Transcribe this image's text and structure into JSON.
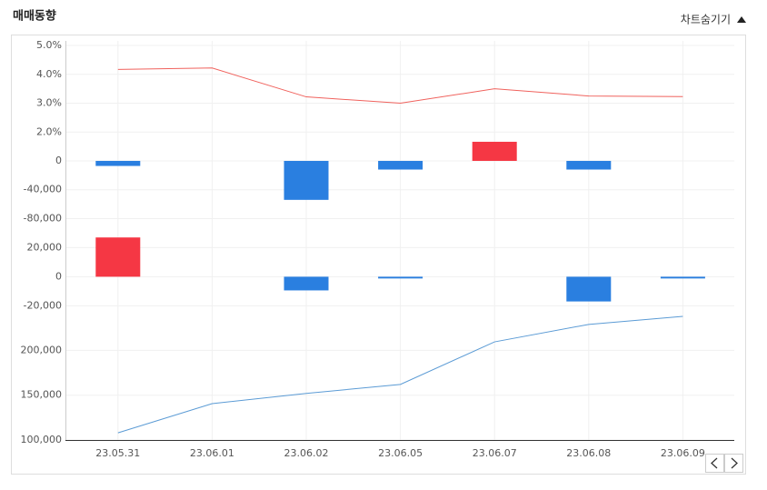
{
  "header": {
    "title": "매매동향",
    "toggle": "차트숨기기"
  },
  "chart_data": [
    {
      "type": "line",
      "color": "#f0625d",
      "values": [
        4.17,
        4.22,
        3.22,
        3.0,
        3.5,
        3.25,
        3.23
      ],
      "ylim": [
        1.6,
        5.0
      ],
      "yticks": [
        {
          "value": 5,
          "label": "5.0%"
        },
        {
          "value": 4,
          "label": "4.0%"
        },
        {
          "value": 3,
          "label": "3.0%"
        },
        {
          "value": 2,
          "label": "2.0%"
        }
      ],
      "grid": true
    },
    {
      "type": "bar",
      "colors": {
        "positive": "#f53744",
        "negative": "#2a7fe0"
      },
      "values": [
        -7000,
        0,
        -54000,
        -12000,
        26500,
        -12000,
        0
      ],
      "ylim": [
        -92000,
        34000
      ],
      "yticks": [
        0,
        {
          "value": -40000,
          "label": "-40,000"
        },
        {
          "value": -80000,
          "label": "-80,000"
        }
      ],
      "grid": true
    },
    {
      "type": "bar",
      "colors": {
        "positive": "#f53744",
        "negative": "#2a7fe0"
      },
      "values": [
        27000,
        0,
        -9400,
        -1200,
        0,
        -17000,
        -1200
      ],
      "ylim": [
        -26000,
        34000
      ],
      "yticks": [
        {
          "value": 20000,
          "label": "20,000"
        },
        0,
        {
          "value": -20000,
          "label": "-20,000"
        }
      ],
      "grid": true
    },
    {
      "type": "line",
      "color": "#5b9bd5",
      "values": [
        108000,
        140600,
        152000,
        162000,
        209500,
        229000,
        238000
      ],
      "ylim": [
        100000,
        240000
      ],
      "yticks": [
        {
          "value": 200000,
          "label": "200,000"
        },
        {
          "value": 150000,
          "label": "150,000"
        },
        {
          "value": 100000,
          "label": "100,000"
        }
      ],
      "grid": true,
      "categories": [
        "23.05.31",
        "23.06.01",
        "23.06.02",
        "23.06.05",
        "23.06.07",
        "23.06.08",
        "23.06.09"
      ]
    }
  ]
}
